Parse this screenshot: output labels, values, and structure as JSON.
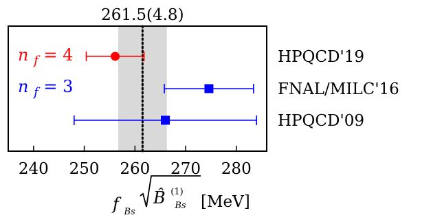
{
  "chart_data": {
    "type": "scatter",
    "title": "",
    "average": {
      "label": "261.5(4.8)",
      "value": 261.5,
      "band": [
        256.7,
        266.3
      ],
      "band_color": "#d9d9d9",
      "line_style": "dotted",
      "line_color": "#000000"
    },
    "xlim": [
      235,
      286
    ],
    "xticks": [
      240,
      250,
      260,
      270,
      280
    ],
    "xticklabels": [
      "240",
      "250",
      "260",
      "270",
      "280"
    ],
    "xlabel": {
      "main": "f",
      "main_sub": "Bs",
      "root_symbol": "B̂",
      "root_sup": "(1)",
      "root_sub": "Bs",
      "unit": "[MeV]"
    },
    "groups": [
      {
        "label": "n_f = 4",
        "color": "#ff0000"
      },
      {
        "label": "n_f = 3",
        "color": "#0000ff"
      }
    ],
    "points": [
      {
        "label": "HPQCD'19",
        "value": 256.1,
        "err_low": 5.7,
        "err_high": 5.7,
        "color": "#ff0000",
        "marker": "circle"
      },
      {
        "label": "FNAL/MILC'16",
        "value": 274.6,
        "err_low": 8.8,
        "err_high": 8.8,
        "color": "#0000ff",
        "marker": "square"
      },
      {
        "label": "HPQCD'09",
        "value": 266.0,
        "err_low": 18.0,
        "err_high": 18.0,
        "color": "#0000ff",
        "marker": "square"
      }
    ]
  }
}
